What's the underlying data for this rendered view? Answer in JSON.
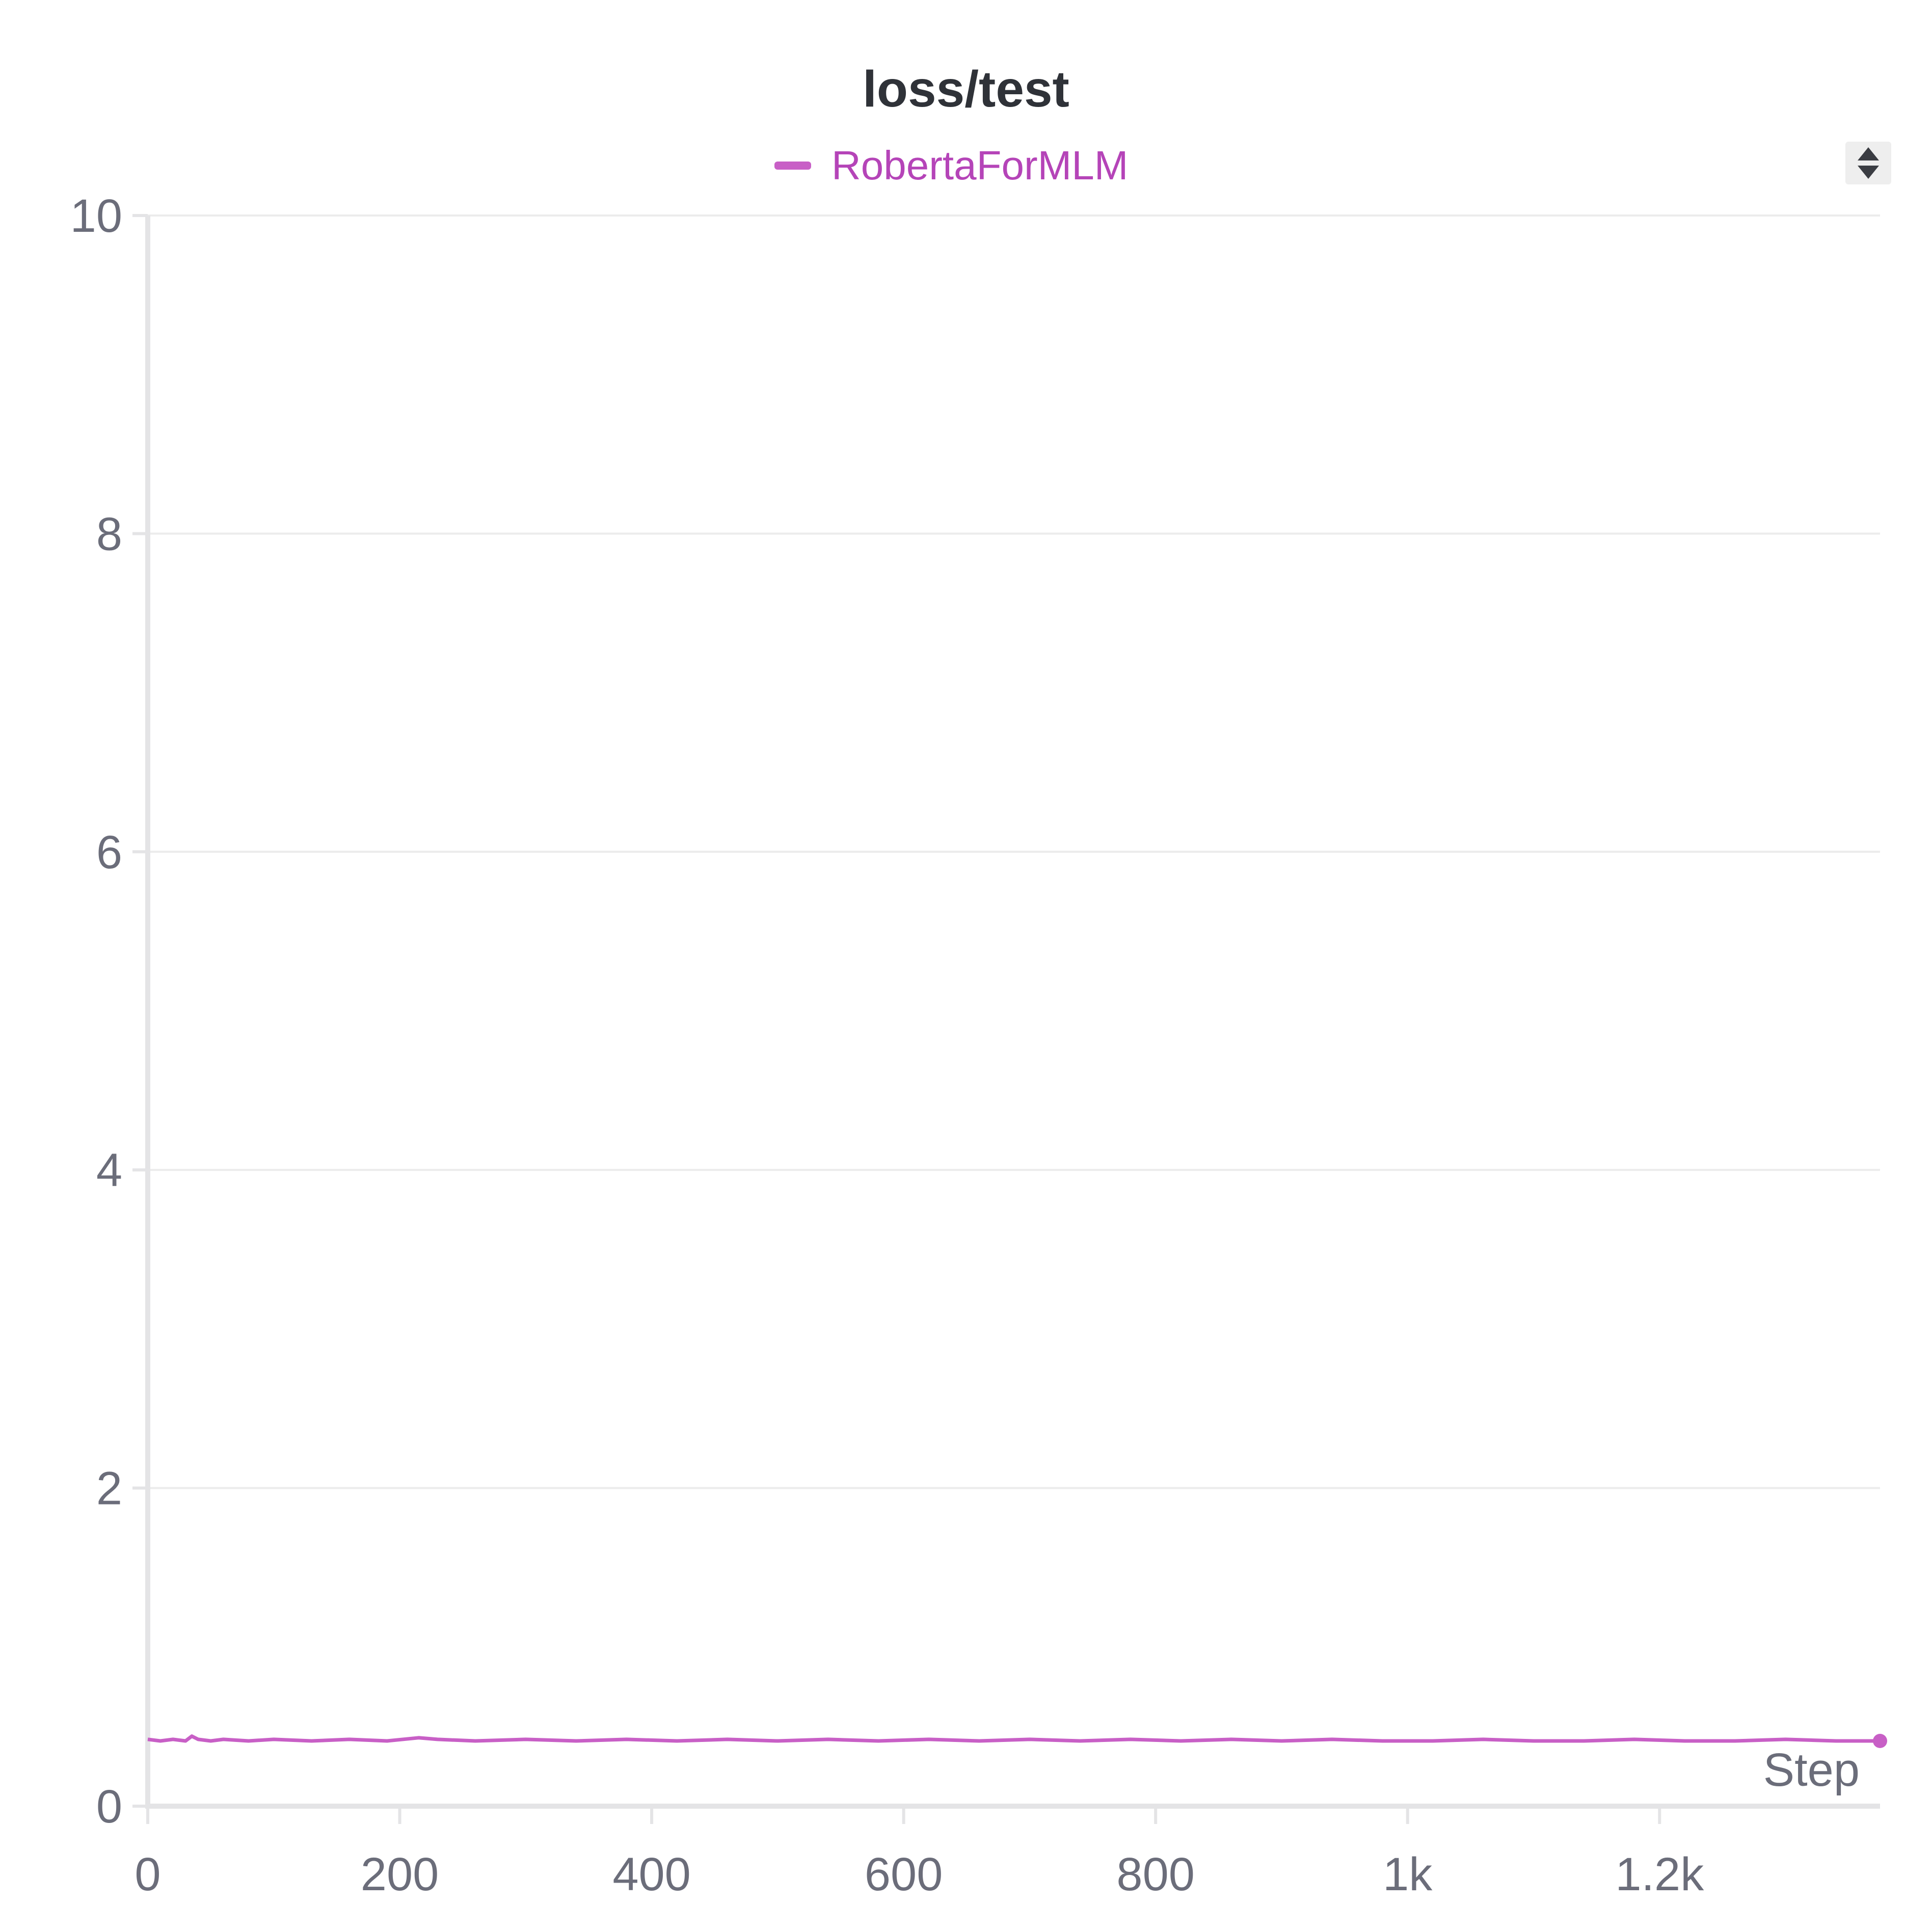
{
  "chart_data": {
    "type": "line",
    "title": "loss/test",
    "xlabel": "Step",
    "ylabel": "",
    "xlim": [
      0,
      1375
    ],
    "ylim": [
      0,
      10
    ],
    "x_ticks": [
      0,
      200,
      400,
      600,
      800,
      1000,
      1200
    ],
    "x_tick_labels": [
      "0",
      "200",
      "400",
      "600",
      "800",
      "1k",
      "1.2k"
    ],
    "y_ticks": [
      0,
      2,
      4,
      6,
      8,
      10
    ],
    "y_tick_labels": [
      "0",
      "2",
      "4",
      "6",
      "8",
      "10"
    ],
    "grid": true,
    "legend": "top-center",
    "series": [
      {
        "name": "RobertaForMLM",
        "color": "#c85fc6",
        "label_color": "#b544b8",
        "x": [
          0,
          10,
          20,
          30,
          35,
          40,
          50,
          60,
          80,
          100,
          130,
          160,
          190,
          215,
          230,
          260,
          300,
          340,
          380,
          420,
          460,
          500,
          540,
          580,
          620,
          660,
          700,
          740,
          780,
          820,
          860,
          900,
          940,
          980,
          1020,
          1060,
          1100,
          1140,
          1180,
          1220,
          1260,
          1300,
          1340,
          1375
        ],
        "y": [
          0.42,
          0.41,
          0.42,
          0.41,
          0.44,
          0.42,
          0.41,
          0.42,
          0.41,
          0.42,
          0.41,
          0.42,
          0.41,
          0.43,
          0.42,
          0.41,
          0.42,
          0.41,
          0.42,
          0.41,
          0.42,
          0.41,
          0.42,
          0.41,
          0.42,
          0.41,
          0.42,
          0.41,
          0.42,
          0.41,
          0.42,
          0.41,
          0.42,
          0.41,
          0.41,
          0.42,
          0.41,
          0.41,
          0.42,
          0.41,
          0.41,
          0.42,
          0.41,
          0.41
        ]
      }
    ]
  },
  "legend": {
    "sort_icon": "sort-arrows-icon"
  },
  "colors": {
    "axis": "#e4e4e6",
    "grid": "#ececec",
    "tick_text": "#6b6d7a",
    "title_text": "#2f3238"
  }
}
